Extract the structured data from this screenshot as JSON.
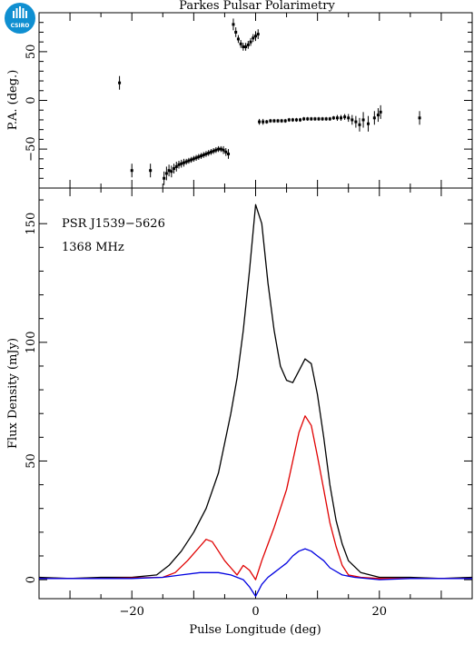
{
  "title": "Parkes Pulsar Polarimetry",
  "logo_text": "CSIRO",
  "annotations": [
    "PSR J1539−5626",
    "1368 MHz"
  ],
  "colors": {
    "total": "#000000",
    "linear": "#e00000",
    "circular": "#0000e0",
    "logo": "#0f8fd1"
  },
  "chart_data": [
    {
      "type": "scatter",
      "panel": "top",
      "xlabel": "",
      "ylabel": "P.A. (deg.)",
      "xlim": [
        -35,
        35
      ],
      "ylim": [
        -90,
        90
      ],
      "yticks": [
        -50,
        0,
        50
      ],
      "grid": false,
      "points": [
        [
          -22.0,
          18,
          7
        ],
        [
          -20.0,
          -72,
          7
        ],
        [
          -17.0,
          -72,
          7
        ],
        [
          -14.8,
          -80,
          7
        ],
        [
          -14.4,
          -75,
          7
        ],
        [
          -14.0,
          -72,
          6
        ],
        [
          -13.6,
          -73,
          6
        ],
        [
          -13.2,
          -70,
          5
        ],
        [
          -12.8,
          -68,
          5
        ],
        [
          -12.4,
          -66,
          4
        ],
        [
          -12.0,
          -65,
          4
        ],
        [
          -11.6,
          -64,
          4
        ],
        [
          -11.2,
          -63,
          3
        ],
        [
          -10.8,
          -62,
          3
        ],
        [
          -10.4,
          -61,
          3
        ],
        [
          -10.0,
          -60,
          3
        ],
        [
          -9.6,
          -59,
          3
        ],
        [
          -9.2,
          -58,
          3
        ],
        [
          -8.8,
          -57,
          3
        ],
        [
          -8.4,
          -56,
          3
        ],
        [
          -8.0,
          -55,
          3
        ],
        [
          -7.6,
          -54,
          3
        ],
        [
          -7.2,
          -53,
          3
        ],
        [
          -6.8,
          -52,
          3
        ],
        [
          -6.4,
          -51,
          3
        ],
        [
          -6.0,
          -50,
          3
        ],
        [
          -5.6,
          -50,
          3
        ],
        [
          -5.2,
          -51,
          4
        ],
        [
          -4.8,
          -53,
          4
        ],
        [
          -4.4,
          -55,
          5
        ],
        [
          -3.6,
          78,
          6
        ],
        [
          -3.2,
          70,
          5
        ],
        [
          -2.8,
          63,
          4
        ],
        [
          -2.4,
          58,
          4
        ],
        [
          -2.0,
          55,
          4
        ],
        [
          -1.6,
          55,
          4
        ],
        [
          -1.2,
          57,
          4
        ],
        [
          -0.8,
          60,
          4
        ],
        [
          -0.4,
          64,
          4
        ],
        [
          0.0,
          66,
          5
        ],
        [
          0.4,
          68,
          5
        ],
        [
          0.6,
          -22,
          3
        ],
        [
          1.2,
          -22,
          3
        ],
        [
          1.8,
          -22,
          2
        ],
        [
          2.4,
          -21,
          2
        ],
        [
          3.0,
          -21,
          2
        ],
        [
          3.6,
          -21,
          2
        ],
        [
          4.2,
          -21,
          2
        ],
        [
          4.8,
          -21,
          2
        ],
        [
          5.4,
          -20,
          2
        ],
        [
          6.0,
          -20,
          2
        ],
        [
          6.6,
          -20,
          2
        ],
        [
          7.2,
          -20,
          2
        ],
        [
          7.8,
          -19,
          2
        ],
        [
          8.4,
          -19,
          2
        ],
        [
          9.0,
          -19,
          2
        ],
        [
          9.6,
          -19,
          2
        ],
        [
          10.2,
          -19,
          2
        ],
        [
          10.8,
          -19,
          2
        ],
        [
          11.4,
          -19,
          2
        ],
        [
          12.0,
          -19,
          2
        ],
        [
          12.6,
          -18,
          2
        ],
        [
          13.2,
          -18,
          3
        ],
        [
          13.8,
          -18,
          3
        ],
        [
          14.4,
          -17,
          3
        ],
        [
          15.0,
          -18,
          4
        ],
        [
          15.6,
          -20,
          5
        ],
        [
          16.2,
          -22,
          6
        ],
        [
          16.8,
          -25,
          7
        ],
        [
          17.4,
          -20,
          8
        ],
        [
          18.2,
          -24,
          8
        ],
        [
          19.2,
          -18,
          7
        ],
        [
          19.8,
          -15,
          7
        ],
        [
          20.2,
          -12,
          7
        ],
        [
          26.5,
          -18,
          7
        ]
      ]
    },
    {
      "type": "line",
      "panel": "bottom",
      "xlabel": "Pulse Longitude (deg)",
      "ylabel": "Flux Density (mJy)",
      "xlim": [
        -35,
        35
      ],
      "ylim": [
        -8,
        165
      ],
      "xticks": [
        -20,
        0,
        20
      ],
      "yticks": [
        0,
        50,
        100,
        150
      ],
      "grid": false,
      "series": [
        {
          "key": "total",
          "x": [
            -35,
            -30,
            -25,
            -20,
            -16,
            -14,
            -12,
            -10,
            -8,
            -6,
            -4,
            -3,
            -2,
            -1,
            0,
            1,
            2,
            3,
            4,
            5,
            6,
            7,
            8,
            9,
            10,
            11,
            12,
            13,
            14,
            15,
            17,
            20,
            25,
            30,
            35
          ],
          "y": [
            1,
            0.5,
            1,
            1,
            2,
            6,
            12,
            20,
            30,
            45,
            70,
            85,
            105,
            130,
            158,
            150,
            125,
            105,
            90,
            84,
            83,
            88,
            93,
            91,
            78,
            60,
            40,
            25,
            15,
            8,
            3,
            1,
            1,
            0.5,
            1
          ]
        },
        {
          "key": "linear",
          "x": [
            -35,
            -25,
            -15,
            -13,
            -11,
            -9,
            -8,
            -7,
            -6,
            -5,
            -4,
            -3,
            -2,
            -1,
            0,
            1,
            2,
            3,
            4,
            5,
            6,
            7,
            8,
            9,
            10,
            11,
            12,
            13,
            14,
            15,
            17,
            20,
            25,
            35
          ],
          "y": [
            0.5,
            0.5,
            1,
            3,
            8,
            14,
            17,
            16,
            12,
            8,
            5,
            2,
            6,
            4,
            0,
            8,
            15,
            22,
            30,
            38,
            50,
            62,
            69,
            65,
            52,
            38,
            24,
            14,
            6,
            2,
            1,
            0.5,
            0.5,
            0.5
          ]
        },
        {
          "key": "circular",
          "x": [
            -35,
            -20,
            -15,
            -12,
            -9,
            -6,
            -4,
            -2,
            -1,
            0,
            1,
            2,
            3,
            4,
            5,
            6,
            7,
            8,
            9,
            10,
            11,
            12,
            14,
            16,
            20,
            25,
            35
          ],
          "y": [
            0.5,
            0.5,
            1,
            2,
            3,
            3,
            2,
            0,
            -3,
            -7,
            -2,
            1,
            3,
            5,
            7,
            10,
            12,
            13,
            12,
            10,
            8,
            5,
            2,
            1,
            0,
            0.5,
            0.5
          ]
        }
      ]
    }
  ]
}
